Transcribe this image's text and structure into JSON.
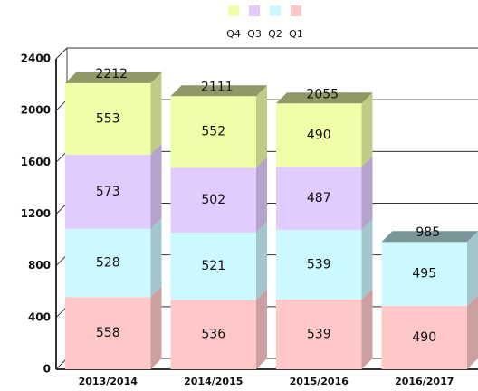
{
  "chart_data": {
    "type": "bar",
    "stacked": true,
    "categories": [
      "2013/2014",
      "2014/2015",
      "2015/2016",
      "2016/2017"
    ],
    "series": [
      {
        "name": "Q1",
        "color": "#ffc8c8",
        "values": [
          558,
          536,
          539,
          490
        ]
      },
      {
        "name": "Q2",
        "color": "#ccf8ff",
        "values": [
          528,
          521,
          539,
          495
        ]
      },
      {
        "name": "Q3",
        "color": "#e2ccff",
        "values": [
          573,
          502,
          487,
          null
        ]
      },
      {
        "name": "Q4",
        "color": "#eeffa8",
        "values": [
          553,
          552,
          490,
          null
        ]
      }
    ],
    "totals": [
      2212,
      2111,
      2055,
      985
    ],
    "ylim": [
      0,
      2400
    ],
    "yticks": [
      0,
      400,
      800,
      1200,
      1600,
      2000,
      2400
    ],
    "grid": true
  }
}
